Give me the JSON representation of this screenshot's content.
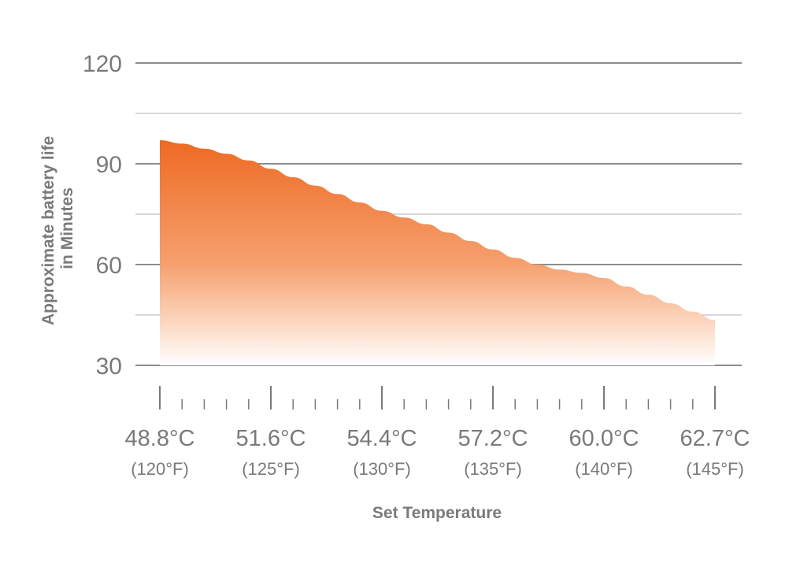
{
  "chart_data": {
    "type": "area",
    "xlabel": "Set Temperature",
    "ylabel": [
      "Approximate battery life",
      "in Minutes"
    ],
    "ylim": [
      30,
      120
    ],
    "yticks": [
      "30",
      "60",
      "90",
      "120"
    ],
    "grid": true,
    "x_ticks": [
      {
        "c": "48.8°C",
        "f": "(120°F)"
      },
      {
        "c": "51.6°C",
        "f": "(125°F)"
      },
      {
        "c": "54.4°C",
        "f": "(130°F)"
      },
      {
        "c": "57.2°C",
        "f": "(135°F)"
      },
      {
        "c": "60.0°C",
        "f": "(140°F)"
      },
      {
        "c": "62.7°C",
        "f": "(145°F)"
      }
    ],
    "x": [
      120,
      121,
      122,
      123,
      124,
      125,
      126,
      127,
      128,
      129,
      130,
      131,
      132,
      133,
      134,
      135,
      136,
      137,
      138,
      139,
      140,
      141,
      142,
      143,
      144,
      145
    ],
    "values": [
      97,
      96,
      94.5,
      93,
      91,
      88.5,
      86,
      83.5,
      81,
      78.5,
      76,
      74,
      72,
      69.5,
      67,
      64.5,
      62,
      60,
      58.5,
      57.5,
      56,
      53.5,
      51,
      48.5,
      46,
      43.5
    ],
    "colors": {
      "top": "#ee6a23",
      "bottom": "#ffffff",
      "grid": "#9a9a9a",
      "tick": "#7a7a7a"
    }
  }
}
